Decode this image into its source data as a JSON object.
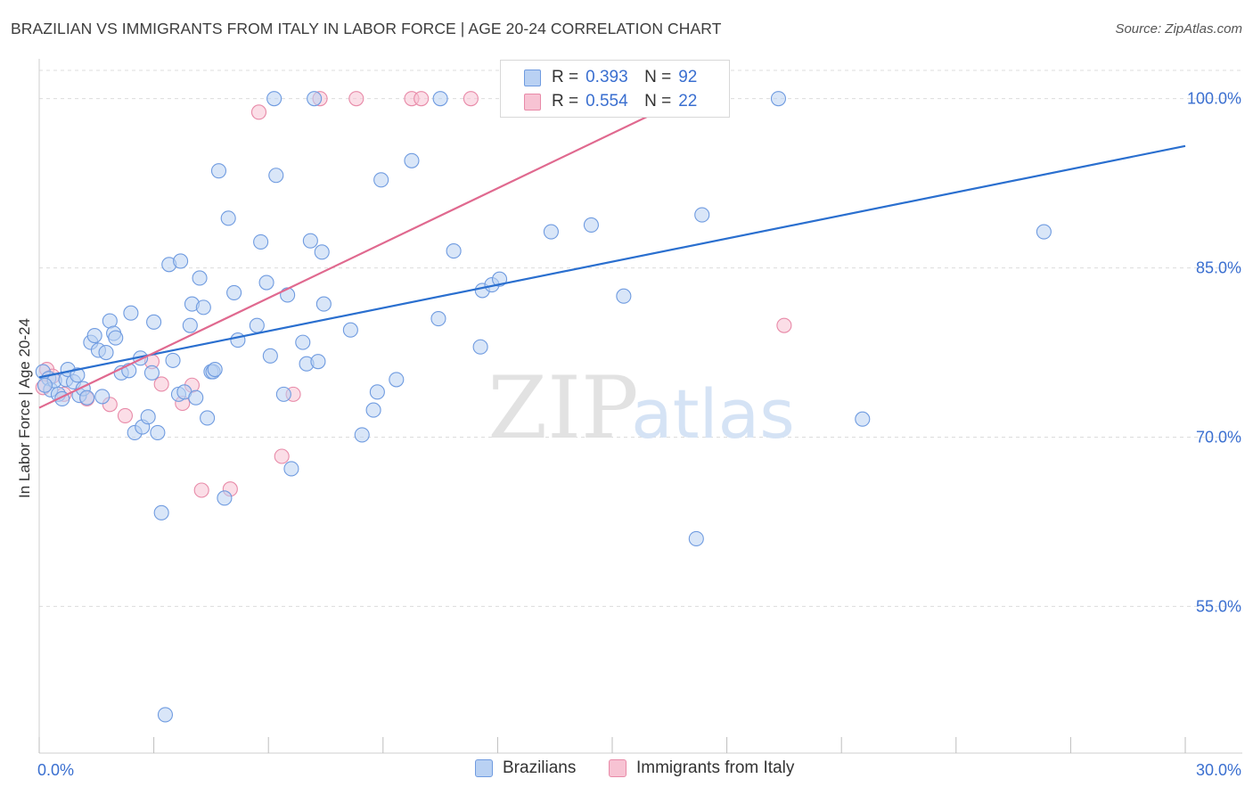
{
  "header": {
    "title": "BRAZILIAN VS IMMIGRANTS FROM ITALY IN LABOR FORCE | AGE 20-24 CORRELATION CHART",
    "source": "Source: ZipAtlas.com"
  },
  "watermark": {
    "zip": "ZIP",
    "atlas": "atlas"
  },
  "legend": {
    "r_label": "R =",
    "n_label": "N =",
    "rows": [
      {
        "name": "Brazilians",
        "r": "0.393",
        "n": "92",
        "color": "#6f9be0",
        "fill": "#b9d1f3"
      },
      {
        "name": "Immigrants from Italy",
        "r": "0.554",
        "n": "22",
        "color": "#e88aa8",
        "fill": "#f7c3d3"
      }
    ]
  },
  "chart_data": {
    "type": "scatter",
    "title": "BRAZILIAN VS IMMIGRANTS FROM ITALY IN LABOR FORCE | AGE 20-24 CORRELATION CHART",
    "xlabel": "",
    "ylabel": "In Labor Force | Age 20-24",
    "xlim": [
      0,
      30
    ],
    "ylim": [
      42,
      102.5
    ],
    "x_tick_labels": [
      "0.0%",
      "30.0%"
    ],
    "y_ticks": [
      55,
      70,
      85,
      100
    ],
    "y_tick_labels": [
      "55.0%",
      "70.0%",
      "85.0%",
      "100.0%"
    ],
    "grid": true,
    "series": [
      {
        "name": "Brazilians",
        "color": "#6f9be0",
        "fill": "#b9d1f3",
        "trend_line": {
          "x": [
            0,
            30
          ],
          "y": [
            75.3,
            95.8
          ]
        },
        "points": [
          [
            0.1,
            75.8
          ],
          [
            0.25,
            75.2
          ],
          [
            0.3,
            74.2
          ],
          [
            0.4,
            75.0
          ],
          [
            0.5,
            73.8
          ],
          [
            0.6,
            73.4
          ],
          [
            0.7,
            75.1
          ],
          [
            0.75,
            76.0
          ],
          [
            0.9,
            74.9
          ],
          [
            1.0,
            75.5
          ],
          [
            1.05,
            73.7
          ],
          [
            1.15,
            74.3
          ],
          [
            1.25,
            73.5
          ],
          [
            1.35,
            78.4
          ],
          [
            1.45,
            79.0
          ],
          [
            1.55,
            77.7
          ],
          [
            1.65,
            73.6
          ],
          [
            1.75,
            77.5
          ],
          [
            1.85,
            80.3
          ],
          [
            1.95,
            79.2
          ],
          [
            2.0,
            78.8
          ],
          [
            2.15,
            75.7
          ],
          [
            2.35,
            75.9
          ],
          [
            2.4,
            81.0
          ],
          [
            2.5,
            70.4
          ],
          [
            2.65,
            77.0
          ],
          [
            2.7,
            70.9
          ],
          [
            2.85,
            71.8
          ],
          [
            2.95,
            75.7
          ],
          [
            3.0,
            80.2
          ],
          [
            3.1,
            70.4
          ],
          [
            3.2,
            63.3
          ],
          [
            3.3,
            45.4
          ],
          [
            3.4,
            85.3
          ],
          [
            3.5,
            76.8
          ],
          [
            3.65,
            73.8
          ],
          [
            3.7,
            85.6
          ],
          [
            3.8,
            74.0
          ],
          [
            3.95,
            79.9
          ],
          [
            4.0,
            81.8
          ],
          [
            4.1,
            73.5
          ],
          [
            4.2,
            84.1
          ],
          [
            4.3,
            81.5
          ],
          [
            4.4,
            71.7
          ],
          [
            4.5,
            75.8
          ],
          [
            4.55,
            75.8
          ],
          [
            4.6,
            76.0
          ],
          [
            4.7,
            93.6
          ],
          [
            4.85,
            64.6
          ],
          [
            4.95,
            89.4
          ],
          [
            5.1,
            82.8
          ],
          [
            5.2,
            78.6
          ],
          [
            5.7,
            79.9
          ],
          [
            5.8,
            87.3
          ],
          [
            5.95,
            83.7
          ],
          [
            6.05,
            77.2
          ],
          [
            6.15,
            100.0
          ],
          [
            6.2,
            93.2
          ],
          [
            6.4,
            73.8
          ],
          [
            6.5,
            82.6
          ],
          [
            6.6,
            67.2
          ],
          [
            6.9,
            78.4
          ],
          [
            7.0,
            76.5
          ],
          [
            7.1,
            87.4
          ],
          [
            7.2,
            100.0
          ],
          [
            7.3,
            76.7
          ],
          [
            7.4,
            86.4
          ],
          [
            7.45,
            81.8
          ],
          [
            8.15,
            79.5
          ],
          [
            8.45,
            70.2
          ],
          [
            8.75,
            72.4
          ],
          [
            8.85,
            74.0
          ],
          [
            8.95,
            92.8
          ],
          [
            9.35,
            75.1
          ],
          [
            9.75,
            94.5
          ],
          [
            10.45,
            80.5
          ],
          [
            10.5,
            100.0
          ],
          [
            10.85,
            86.5
          ],
          [
            11.55,
            78.0
          ],
          [
            11.6,
            83.0
          ],
          [
            11.85,
            83.5
          ],
          [
            12.05,
            84.0
          ],
          [
            13.4,
            88.2
          ],
          [
            14.45,
            88.8
          ],
          [
            15.3,
            82.5
          ],
          [
            15.35,
            100.0
          ],
          [
            17.2,
            61.0
          ],
          [
            17.35,
            89.7
          ],
          [
            19.35,
            100.0
          ],
          [
            21.55,
            71.6
          ],
          [
            26.3,
            88.2
          ],
          [
            0.15,
            74.6
          ]
        ]
      },
      {
        "name": "Immigrants from Italy",
        "color": "#e88aa8",
        "fill": "#f7c3d3",
        "trend_line": {
          "x": [
            0,
            16.9
          ],
          "y": [
            72.6,
            100.0
          ]
        },
        "points": [
          [
            0.1,
            74.4
          ],
          [
            0.2,
            76.0
          ],
          [
            0.35,
            75.4
          ],
          [
            0.65,
            73.8
          ],
          [
            1.25,
            73.4
          ],
          [
            1.85,
            72.9
          ],
          [
            2.25,
            71.9
          ],
          [
            2.95,
            76.7
          ],
          [
            3.2,
            74.7
          ],
          [
            3.75,
            73.0
          ],
          [
            4.0,
            74.6
          ],
          [
            4.25,
            65.3
          ],
          [
            5.0,
            65.4
          ],
          [
            5.75,
            98.8
          ],
          [
            6.35,
            68.3
          ],
          [
            6.65,
            73.8
          ],
          [
            7.35,
            100.0
          ],
          [
            8.3,
            100.0
          ],
          [
            9.75,
            100.0
          ],
          [
            10.0,
            100.0
          ],
          [
            11.3,
            100.0
          ],
          [
            19.5,
            79.9
          ]
        ]
      }
    ]
  }
}
